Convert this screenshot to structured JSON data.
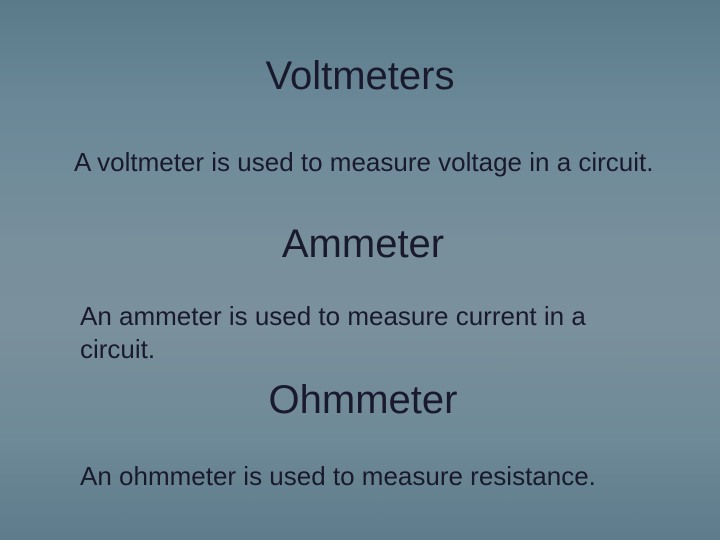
{
  "slide": {
    "background_gradient": [
      "#5a7a8a",
      "#6a8898",
      "#788f9c",
      "#7a909c",
      "#6f8a98",
      "#5e7c8c"
    ],
    "title_color": "#1a1a2e",
    "body_color": "#1a1a2e",
    "title_fontsize": 40,
    "body_fontsize": 26,
    "font_family": "Verdana",
    "sections": [
      {
        "title": "Voltmeters",
        "body": "A voltmeter is used to measure voltage in a circuit."
      },
      {
        "title": "Ammeter",
        "body": "An ammeter is used to measure current in a circuit."
      },
      {
        "title": "Ohmmeter",
        "body": "An ohmmeter is used to measure resistance."
      }
    ]
  }
}
